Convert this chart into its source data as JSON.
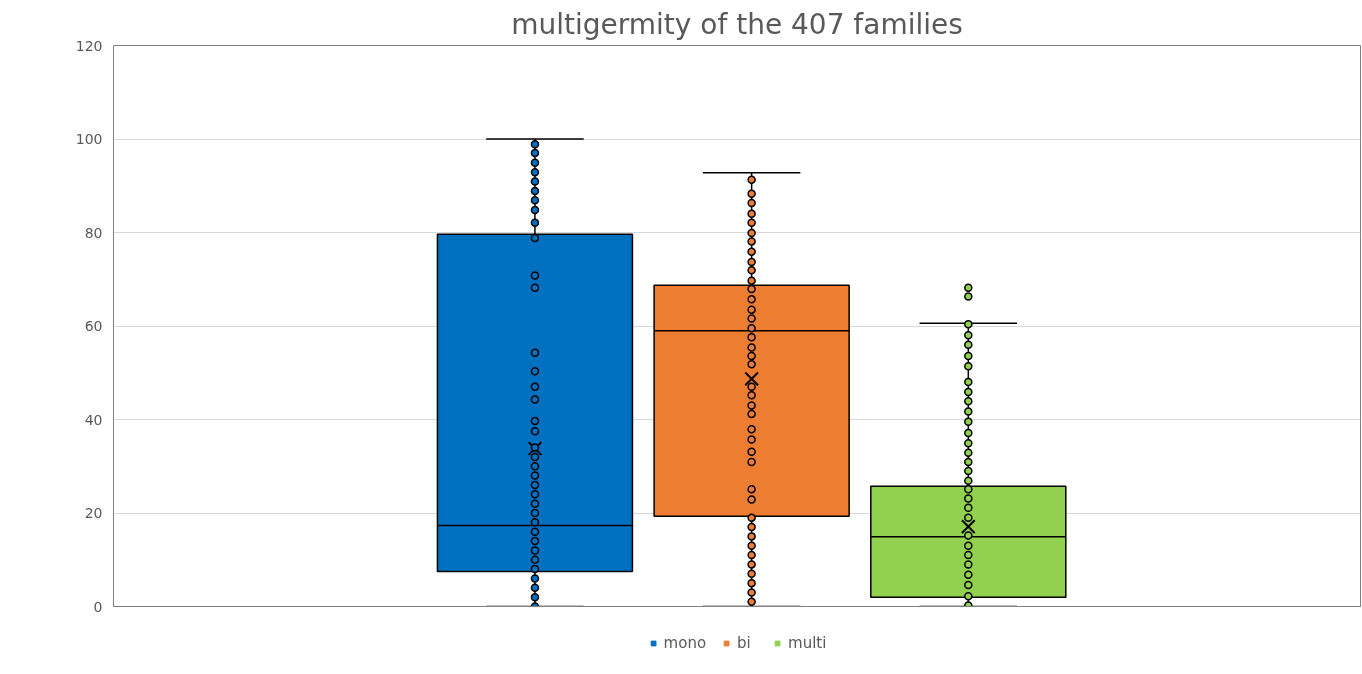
{
  "chart_data": {
    "type": "box",
    "title": "multigermity of the 407 families",
    "categories": [
      null
    ],
    "ylim": [
      0,
      120
    ],
    "yticks": [
      0,
      20,
      40,
      60,
      80,
      100,
      120
    ],
    "grid": "y",
    "legend": "bottom",
    "tick_labels": "y",
    "marker": "circle",
    "series": [
      {
        "name": "mono",
        "color": "#0070c0",
        "boxes": [
          {
            "low": 0,
            "q1": 7.5,
            "median": 17.3,
            "q3": 79.6,
            "high": 100,
            "mean": 33.8,
            "outliers": [
              98.9,
              97.0,
              94.9,
              92.9,
              90.9,
              88.9,
              86.9,
              84.8,
              82.1,
              78.8,
              70.8,
              68.2,
              54.3,
              50.3,
              47.0,
              44.3,
              39.7,
              37.5,
              34,
              32,
              30,
              28,
              26,
              24,
              22,
              20,
              18,
              16,
              14,
              12,
              10,
              8,
              6,
              4,
              2,
              0
            ]
          }
        ]
      },
      {
        "name": "bi",
        "color": "#ed7d31",
        "boxes": [
          {
            "low": 0,
            "q1": 19.3,
            "median": 59.0,
            "q3": 68.7,
            "high": 92.8,
            "mean": 48.7,
            "outliers": [
              91.3,
              88.3,
              86.3,
              84.0,
              82.1,
              79.9,
              78.1,
              75.9,
              73.7,
              71.9,
              69.7,
              67.9,
              65.7,
              63.5,
              61.6,
              59.5,
              57.6,
              55.4,
              53.6,
              51.8,
              47.0,
              45.2,
              43.0,
              41.2,
              37.9,
              35.7,
              33.1,
              30.9,
              25.1,
              22.9,
              19,
              17,
              15,
              13,
              11,
              9,
              7,
              5,
              3,
              1
            ]
          }
        ]
      },
      {
        "name": "multi",
        "color": "#92d050",
        "boxes": [
          {
            "low": 0,
            "q1": 2.0,
            "median": 14.9,
            "q3": 25.7,
            "high": 60.6,
            "mean": 17.1,
            "outliers": [
              68.2,
              66.3,
              60.4,
              58.0,
              56.0,
              53.6,
              51.4,
              48.0,
              45.9,
              43.9,
              41.7,
              39.5,
              37.1,
              34.9,
              32.9,
              30.9,
              29.0,
              26.9,
              25.1,
              23.1,
              21.1,
              19.0,
              15.2,
              13.0,
              11.0,
              9.0,
              6.8,
              4.6,
              2.2,
              0.2
            ]
          }
        ]
      }
    ]
  }
}
